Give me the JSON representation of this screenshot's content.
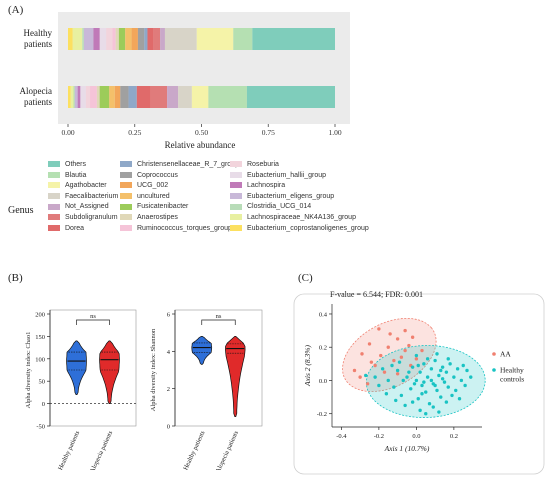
{
  "panel_a": {
    "label": "(A)",
    "legend_title": "Genus"
  },
  "panel_b": {
    "label": "(B)"
  },
  "panel_c": {
    "label": "(C)"
  },
  "chart_data": [
    {
      "type": "bar",
      "subtype": "stacked-horizontal-100",
      "categories": [
        "Healthy patients",
        "Alopecia patients"
      ],
      "xlabel": "Relative abundance",
      "xticks": [
        "0.00",
        "0.25",
        "0.50",
        "0.75",
        "1.00"
      ],
      "xlim": [
        0,
        1
      ],
      "legend_title": "Genus",
      "legend": [
        {
          "name": "Others",
          "color": "#7fcdbb"
        },
        {
          "name": "Blautia",
          "color": "#b5e0b2"
        },
        {
          "name": "Agathobacter",
          "color": "#f5f3a8"
        },
        {
          "name": "Faecalibacterium",
          "color": "#d8d4c8"
        },
        {
          "name": "Not_Assigned",
          "color": "#c9a8c9"
        },
        {
          "name": "Subdoligranulum",
          "color": "#e07b7b"
        },
        {
          "name": "Dorea",
          "color": "#e06a6a"
        },
        {
          "name": "Christensenellaceae_R_7_group",
          "color": "#8fa8c8"
        },
        {
          "name": "Coprococcus",
          "color": "#a0a0a0"
        },
        {
          "name": "UCG_002",
          "color": "#f2a65a"
        },
        {
          "name": "uncultured",
          "color": "#f4c06a"
        },
        {
          "name": "Fusicatenibacter",
          "color": "#9ccc5a"
        },
        {
          "name": "Anaerostipes",
          "color": "#e0d8b8"
        },
        {
          "name": "Ruminococcus_torques_group",
          "color": "#f5c4d8"
        },
        {
          "name": "Roseburia",
          "color": "#f2d4dc"
        },
        {
          "name": "Eubacterium_hallii_group",
          "color": "#e8dce8"
        },
        {
          "name": "Lachnospira",
          "color": "#c07ab8"
        },
        {
          "name": "Eubacterium_eligens_group",
          "color": "#c8b8d8"
        },
        {
          "name": "Clostridia_UCG_014",
          "color": "#b8dcb8"
        },
        {
          "name": "Lachnospiraceae_NK4A136_group",
          "color": "#e8f0a0"
        },
        {
          "name": "Eubacterium_coprostanoligenes_group",
          "color": "#fce060"
        }
      ],
      "stacks": [
        {
          "category": "Healthy patients",
          "segments": [
            {
              "genus": "Eubacterium_coprostanoligenes_group",
              "value": 0.015
            },
            {
              "genus": "Lachnospiraceae_NK4A136_group",
              "value": 0.03
            },
            {
              "genus": "Clostridia_UCG_014",
              "value": 0.005
            },
            {
              "genus": "Eubacterium_eligens_group",
              "value": 0.03
            },
            {
              "genus": "Lachnospira",
              "value": 0.02
            },
            {
              "genus": "Eubacterium_hallii_group",
              "value": 0.02
            },
            {
              "genus": "Roseburia",
              "value": 0.02
            },
            {
              "genus": "Ruminococcus_torques_group",
              "value": 0.01
            },
            {
              "genus": "Anaerostipes",
              "value": 0.01
            },
            {
              "genus": "Fusicatenibacter",
              "value": 0.02
            },
            {
              "genus": "uncultured",
              "value": 0.02
            },
            {
              "genus": "UCG_002",
              "value": 0.02
            },
            {
              "genus": "Coprococcus",
              "value": 0.02
            },
            {
              "genus": "Christensenellaceae_R_7_group",
              "value": 0.01
            },
            {
              "genus": "Dorea",
              "value": 0.02
            },
            {
              "genus": "Subdoligranulum",
              "value": 0.02
            },
            {
              "genus": "Not_Assigned",
              "value": 0.015
            },
            {
              "genus": "Faecalibacterium",
              "value": 0.1
            },
            {
              "genus": "Agathobacter",
              "value": 0.115
            },
            {
              "genus": "Blautia",
              "value": 0.06
            },
            {
              "genus": "Others",
              "value": 0.26
            }
          ]
        },
        {
          "category": "Alopecia patients",
          "segments": [
            {
              "genus": "Eubacterium_coprostanoligenes_group",
              "value": 0.01
            },
            {
              "genus": "Lachnospiraceae_NK4A136_group",
              "value": 0.01
            },
            {
              "genus": "Clostridia_UCG_014",
              "value": 0.005
            },
            {
              "genus": "Eubacterium_eligens_group",
              "value": 0.01
            },
            {
              "genus": "Lachnospira",
              "value": 0.01
            },
            {
              "genus": "Eubacterium_hallii_group",
              "value": 0.02
            },
            {
              "genus": "Roseburia",
              "value": 0.015
            },
            {
              "genus": "Ruminococcus_torques_group",
              "value": 0.025
            },
            {
              "genus": "Anaerostipes",
              "value": 0.01
            },
            {
              "genus": "Fusicatenibacter",
              "value": 0.035
            },
            {
              "genus": "uncultured",
              "value": 0.02
            },
            {
              "genus": "UCG_002",
              "value": 0.02
            },
            {
              "genus": "Coprococcus",
              "value": 0.03
            },
            {
              "genus": "Christensenellaceae_R_7_group",
              "value": 0.03
            },
            {
              "genus": "Dorea",
              "value": 0.05
            },
            {
              "genus": "Subdoligranulum",
              "value": 0.06
            },
            {
              "genus": "Not_Assigned",
              "value": 0.04
            },
            {
              "genus": "Faecalibacterium",
              "value": 0.05
            },
            {
              "genus": "Agathobacter",
              "value": 0.06
            },
            {
              "genus": "Blautia",
              "value": 0.14
            },
            {
              "genus": "Others",
              "value": 0.32
            }
          ]
        }
      ]
    },
    {
      "type": "violin",
      "ylabel": "Alpha diversity index: Chao1",
      "categories": [
        "Healthy patients",
        "Alopecia patients"
      ],
      "ylim": [
        -50,
        200
      ],
      "yticks": [
        "-50",
        "0",
        "50",
        "100",
        "150",
        "200"
      ],
      "reference_line_y": 0,
      "annotation": "ns",
      "colors": [
        "#2e6fd8",
        "#e02a2a"
      ],
      "series": [
        {
          "name": "Healthy patients",
          "min": 20,
          "q1": 75,
          "median": 95,
          "q3": 115,
          "max": 140
        },
        {
          "name": "Alopecia patients",
          "min": 0,
          "q1": 75,
          "median": 98,
          "q3": 115,
          "max": 140
        }
      ]
    },
    {
      "type": "violin",
      "ylabel": "Alpha diversity index: Shannon",
      "categories": [
        "Healthy patients",
        "Alopecia patients"
      ],
      "ylim": [
        0,
        6
      ],
      "yticks": [
        "0",
        "2",
        "4",
        "6"
      ],
      "annotation": "ns",
      "colors": [
        "#2e6fd8",
        "#e02a2a"
      ],
      "series": [
        {
          "name": "Healthy patients",
          "min": 3.3,
          "q1": 3.95,
          "median": 4.2,
          "q3": 4.45,
          "max": 4.8
        },
        {
          "name": "Alopecia patients",
          "min": 0.5,
          "q1": 3.9,
          "median": 4.15,
          "q3": 4.4,
          "max": 4.8
        }
      ]
    },
    {
      "type": "scatter",
      "title": "F-value = 6.544; FDR: 0.001",
      "xlabel": "Axis 1 (10.7%)",
      "ylabel": "Axis 2 (8.3%)",
      "xlim": [
        -0.45,
        0.35
      ],
      "ylim": [
        -0.28,
        0.46
      ],
      "xticks": [
        "-0.4",
        "-0.2",
        "0.0",
        "0.2"
      ],
      "yticks": [
        "-0.2",
        "0.0",
        "0.2",
        "0.4"
      ],
      "legend": [
        {
          "name": "AA",
          "color": "#f08070"
        },
        {
          "name": "Healthy\ncontrols",
          "color": "#19c3c3"
        }
      ],
      "series": [
        {
          "name": "AA",
          "color": "#f08070",
          "points": [
            [
              -0.33,
              0.06
            ],
            [
              -0.29,
              0.16
            ],
            [
              -0.25,
              0.22
            ],
            [
              -0.2,
              0.31
            ],
            [
              -0.14,
              0.28
            ],
            [
              -0.1,
              0.25
            ],
            [
              -0.06,
              0.3
            ],
            [
              -0.02,
              0.26
            ],
            [
              -0.22,
              0.09
            ],
            [
              -0.3,
              0.02
            ],
            [
              -0.17,
              0.05
            ],
            [
              -0.12,
              0.12
            ],
            [
              -0.06,
              0.18
            ],
            [
              -0.03,
              0.09
            ],
            [
              -0.26,
              -0.02
            ],
            [
              -0.08,
              0.14
            ],
            [
              -0.15,
              0.2
            ],
            [
              -0.1,
              0.04
            ],
            [
              -0.04,
              0.21
            ],
            [
              0.0,
              0.13
            ],
            [
              0.03,
              0.18
            ],
            [
              -0.19,
              0.15
            ],
            [
              -0.24,
              0.11
            ]
          ]
        },
        {
          "name": "Healthy controls",
          "color": "#19c3c3",
          "points": [
            [
              -0.27,
              0.03
            ],
            [
              -0.22,
              0.02
            ],
            [
              -0.18,
              0.07
            ],
            [
              -0.15,
              0.0
            ],
            [
              -0.12,
              -0.04
            ],
            [
              -0.1,
              0.06
            ],
            [
              -0.08,
              -0.09
            ],
            [
              -0.05,
              0.02
            ],
            [
              -0.03,
              -0.05
            ],
            [
              -0.02,
              0.08
            ],
            [
              0.0,
              0.0
            ],
            [
              0.01,
              -0.11
            ],
            [
              0.02,
              0.05
            ],
            [
              0.03,
              -0.03
            ],
            [
              0.04,
              0.1
            ],
            [
              0.05,
              -0.07
            ],
            [
              0.06,
              0.02
            ],
            [
              0.07,
              -0.14
            ],
            [
              0.08,
              0.07
            ],
            [
              0.09,
              -0.02
            ],
            [
              0.1,
              0.12
            ],
            [
              0.11,
              -0.06
            ],
            [
              0.12,
              0.03
            ],
            [
              0.13,
              -0.1
            ],
            [
              0.14,
              0.08
            ],
            [
              0.15,
              -0.01
            ],
            [
              0.16,
              0.05
            ],
            [
              0.17,
              -0.04
            ],
            [
              0.18,
              0.1
            ],
            [
              0.2,
              0.02
            ],
            [
              0.21,
              -0.06
            ],
            [
              0.22,
              0.07
            ],
            [
              0.24,
              0.0
            ],
            [
              0.26,
              -0.03
            ],
            [
              0.27,
              0.06
            ],
            [
              0.29,
              0.02
            ],
            [
              -0.06,
              -0.15
            ],
            [
              -0.02,
              -0.13
            ],
            [
              0.02,
              -0.18
            ],
            [
              0.05,
              -0.2
            ],
            [
              0.09,
              -0.16
            ],
            [
              0.12,
              -0.19
            ],
            [
              0.16,
              -0.13
            ],
            [
              -0.09,
              0.11
            ],
            [
              -0.13,
              0.09
            ],
            [
              0.0,
              0.15
            ],
            [
              0.06,
              0.13
            ],
            [
              0.11,
              0.16
            ],
            [
              -0.2,
              -0.03
            ],
            [
              -0.16,
              -0.08
            ],
            [
              0.19,
              -0.09
            ],
            [
              0.23,
              -0.11
            ],
            [
              0.04,
              -0.01
            ],
            [
              0.08,
              0.0
            ],
            [
              -0.04,
              0.05
            ],
            [
              0.14,
              0.01
            ],
            [
              0.1,
              -0.03
            ],
            [
              0.01,
              0.09
            ],
            [
              -0.07,
              0.0
            ],
            [
              0.17,
              0.13
            ],
            [
              -0.11,
              -0.12
            ],
            [
              0.25,
              0.09
            ],
            [
              0.03,
              -0.08
            ],
            [
              0.13,
              0.06
            ],
            [
              -0.01,
              -0.02
            ]
          ]
        }
      ]
    }
  ]
}
